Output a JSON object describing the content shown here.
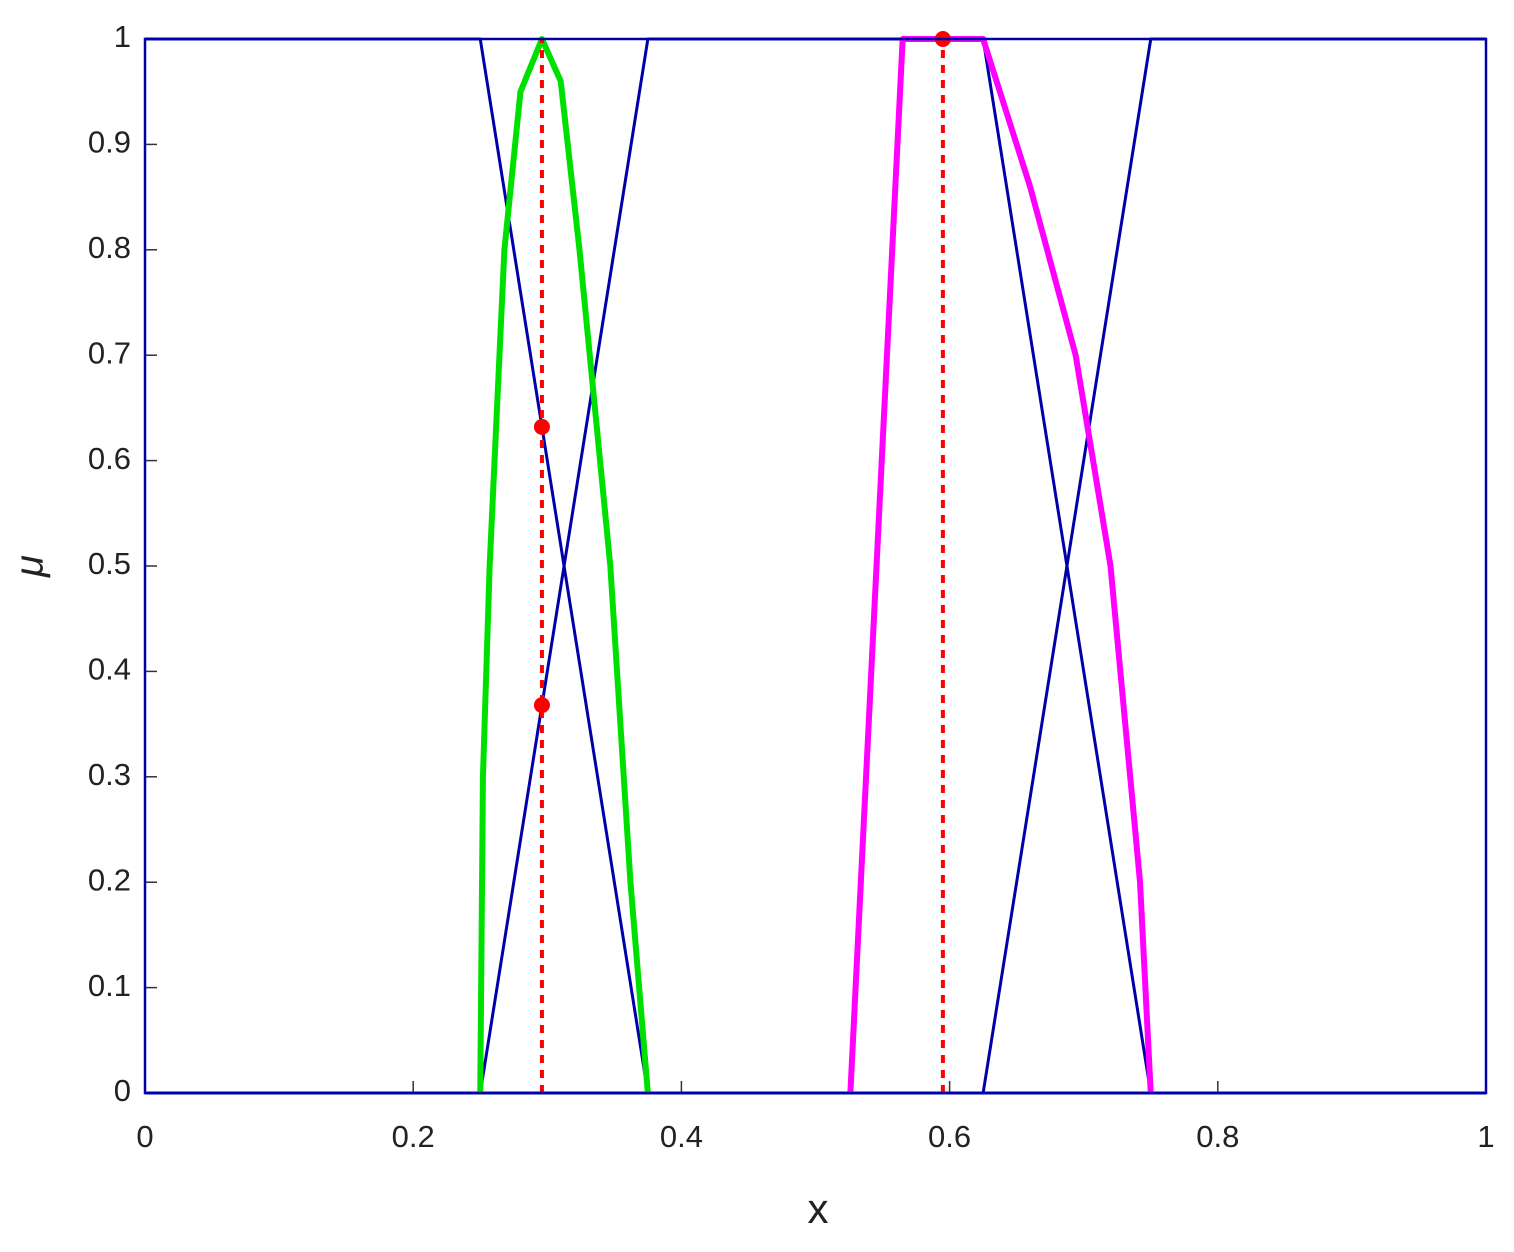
{
  "chart_data": {
    "type": "line",
    "x_label": "x",
    "y_label": "μ",
    "xlim": [
      0,
      1
    ],
    "ylim": [
      0,
      1
    ],
    "xticks": [
      0,
      0.2,
      0.4,
      0.6,
      0.8,
      1
    ],
    "yticks": [
      0,
      0.1,
      0.2,
      0.3,
      0.4,
      0.5,
      0.6,
      0.7,
      0.8,
      0.9,
      1
    ],
    "grid": false,
    "series": [
      {
        "color": "#0000aa",
        "style": "solid",
        "x": [
          0,
          0.25,
          0.375,
          1
        ],
        "values": [
          1,
          1,
          0,
          0
        ]
      },
      {
        "color": "#0000aa",
        "style": "solid",
        "x": [
          0,
          0.25,
          0.375,
          0.625,
          0.75,
          1
        ],
        "values": [
          0,
          0,
          1,
          1,
          0,
          0
        ]
      },
      {
        "color": "#0000aa",
        "style": "solid",
        "x": [
          0,
          0.625,
          0.75,
          1
        ],
        "values": [
          0,
          0,
          1,
          1
        ]
      },
      {
        "color": "#00e000",
        "style": "thick",
        "x": [
          0.25,
          0.252,
          0.257,
          0.268,
          0.28,
          0.296,
          0.31,
          0.324,
          0.347,
          0.362,
          0.375
        ],
        "values": [
          0,
          0.3,
          0.5,
          0.8,
          0.95,
          1,
          0.96,
          0.8,
          0.5,
          0.2,
          0
        ]
      },
      {
        "color": "#ff00ff",
        "style": "thick",
        "x": [
          0.526,
          0.565,
          0.625,
          0.66,
          0.694,
          0.72,
          0.742,
          0.75
        ],
        "values": [
          0,
          1,
          1,
          0.86,
          0.7,
          0.5,
          0.2,
          0
        ]
      },
      {
        "color": "#ff0000",
        "style": "dashed",
        "x": [
          0.296,
          0.296
        ],
        "values": [
          0,
          1
        ]
      },
      {
        "color": "#ff0000",
        "style": "dashed",
        "x": [
          0.595,
          0.595
        ],
        "values": [
          0,
          1
        ]
      },
      {
        "color": "#ff0000",
        "style": "points",
        "x": [
          0.296,
          0.296,
          0.595
        ],
        "values": [
          0.632,
          0.368,
          1
        ]
      }
    ]
  }
}
